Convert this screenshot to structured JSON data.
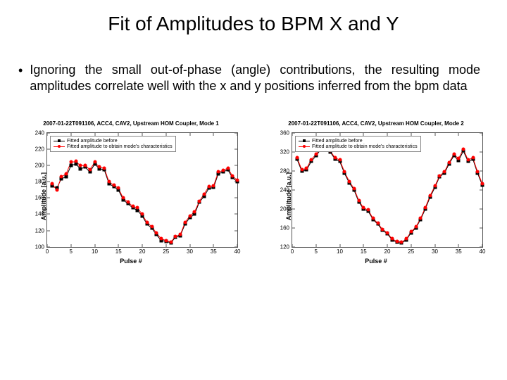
{
  "title": "Fit of Amplitudes to BPM X and Y",
  "bullet": "Ignoring the small out-of-phase (angle) contributions, the resulting mode amplitudes correlate well with the x and y positions inferred from the bpm data",
  "chart_common": {
    "xlabel": "Pulse #",
    "ylabel": "Amplitude [a.u.]",
    "legend_before": "Fitted amplitude before",
    "legend_char": "Fitted amplitude to obtain mode's characteristics",
    "series1_color": "#000000",
    "series2_color": "#ff0000",
    "series1_marker": "square",
    "series2_marker": "circle",
    "line_width": 1,
    "marker_size": 5,
    "grid": false,
    "background_color": "#ffffff",
    "axis_color": "#555555",
    "label_fontsize": 9,
    "tick_fontsize": 8,
    "title_fontsize": 8
  },
  "chart1": {
    "title": "2007-01-22T091106, ACC4, CAV2, Upstream HOM Coupler, Mode 1",
    "xlim": [
      0,
      40
    ],
    "ylim": [
      100,
      240
    ],
    "xticks": [
      0,
      5,
      10,
      15,
      20,
      25,
      30,
      35,
      40
    ],
    "yticks": [
      100,
      120,
      140,
      160,
      180,
      200,
      220,
      240
    ],
    "x": [
      1,
      2,
      3,
      4,
      5,
      6,
      7,
      8,
      9,
      10,
      11,
      12,
      13,
      14,
      15,
      16,
      17,
      18,
      19,
      20,
      21,
      22,
      23,
      24,
      25,
      26,
      27,
      28,
      29,
      30,
      31,
      32,
      33,
      34,
      35,
      36,
      37,
      38,
      39,
      40
    ],
    "s1": [
      175,
      172,
      184,
      186,
      200,
      202,
      196,
      198,
      192,
      202,
      196,
      195,
      178,
      174,
      170,
      158,
      153,
      148,
      145,
      138,
      128,
      123,
      115,
      108,
      107,
      105,
      112,
      114,
      128,
      136,
      140,
      155,
      162,
      172,
      173,
      190,
      192,
      195,
      185,
      180
    ],
    "s2": [
      178,
      170,
      186,
      190,
      204,
      205,
      200,
      200,
      195,
      204,
      198,
      197,
      180,
      176,
      172,
      160,
      155,
      150,
      148,
      140,
      130,
      125,
      117,
      110,
      108,
      106,
      113,
      115,
      130,
      138,
      143,
      156,
      165,
      174,
      175,
      192,
      194,
      197,
      187,
      182
    ]
  },
  "chart2": {
    "title": "2007-01-22T091106, ACC4, CAV2, Upstream HOM Coupler, Mode 2",
    "xlim": [
      0,
      40
    ],
    "ylim": [
      120,
      360
    ],
    "xticks": [
      0,
      5,
      10,
      15,
      20,
      25,
      30,
      35,
      40
    ],
    "yticks": [
      120,
      160,
      200,
      240,
      280,
      320,
      360
    ],
    "x": [
      1,
      2,
      3,
      4,
      5,
      6,
      7,
      8,
      9,
      10,
      11,
      12,
      13,
      14,
      15,
      16,
      17,
      18,
      19,
      20,
      21,
      22,
      23,
      24,
      25,
      26,
      27,
      28,
      29,
      30,
      31,
      32,
      33,
      34,
      35,
      36,
      37,
      38,
      39,
      40
    ],
    "s1": [
      305,
      280,
      282,
      300,
      312,
      325,
      335,
      320,
      305,
      300,
      275,
      255,
      240,
      215,
      200,
      195,
      178,
      168,
      155,
      148,
      135,
      130,
      128,
      135,
      150,
      160,
      178,
      200,
      225,
      245,
      268,
      275,
      295,
      312,
      302,
      322,
      300,
      305,
      275,
      250
    ],
    "s2": [
      308,
      283,
      285,
      304,
      315,
      328,
      338,
      322,
      308,
      303,
      278,
      258,
      243,
      218,
      202,
      198,
      180,
      170,
      157,
      150,
      137,
      132,
      130,
      137,
      152,
      162,
      180,
      203,
      228,
      248,
      270,
      278,
      298,
      315,
      306,
      326,
      303,
      308,
      278,
      253
    ]
  }
}
